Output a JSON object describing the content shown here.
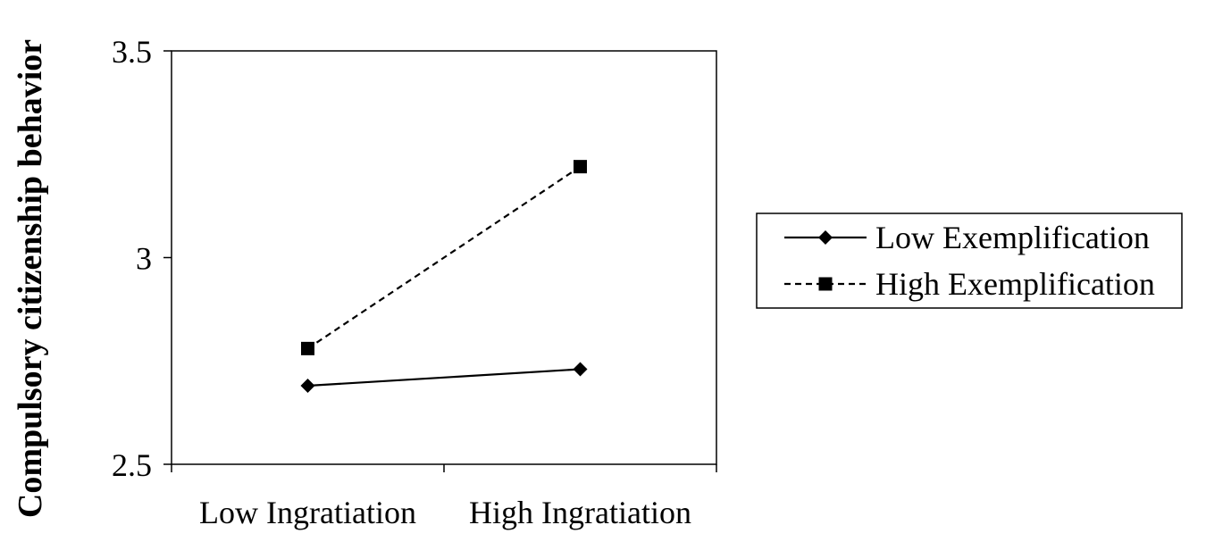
{
  "chart_data": {
    "type": "line",
    "title": "",
    "xlabel": "",
    "ylabel": "Compulsory citizenship behavior",
    "categories": [
      "Low Ingratiation",
      "High Ingratiation"
    ],
    "ylim": [
      2.5,
      3.5
    ],
    "yticks": [
      "2.5",
      "3",
      "3.5"
    ],
    "grid": false,
    "legend_position": "right",
    "series": [
      {
        "name": "Low Exemplification",
        "values": [
          2.69,
          2.73
        ],
        "line_style": "solid",
        "marker": "diamond",
        "color": "#000000"
      },
      {
        "name": "High Exemplification",
        "values": [
          2.78,
          3.22
        ],
        "line_style": "dashed",
        "marker": "square",
        "color": "#000000"
      }
    ]
  }
}
